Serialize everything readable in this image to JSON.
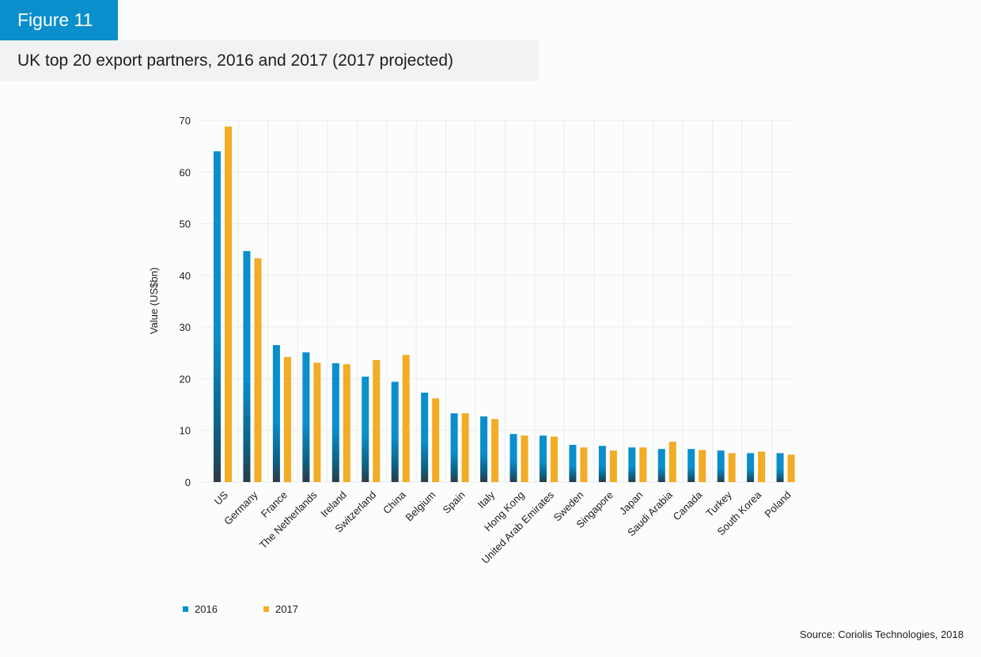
{
  "figure_label": "Figure 11",
  "title": "UK top 20 export partners, 2016 and 2017 (2017 projected)",
  "source": "Source: Coriolis Technologies, 2018",
  "colors": {
    "2016": "#0a8fcc",
    "2016_dark": "#2e3a44",
    "2017": "#f2ac25",
    "grid": "#eceef1"
  },
  "legend": [
    {
      "label": "2016",
      "key": "2016"
    },
    {
      "label": "2017",
      "key": "2017"
    }
  ],
  "chart_data": {
    "type": "bar",
    "title": "UK top 20 export partners, 2016 and 2017 (2017 projected)",
    "xlabel": "",
    "ylabel": "Value (US$bn)",
    "ylim": [
      0,
      70
    ],
    "yticks": [
      0,
      10,
      20,
      30,
      40,
      50,
      60,
      70
    ],
    "grid": true,
    "legend_position": "bottom-left",
    "categories": [
      "US",
      "Germany",
      "France",
      "The Netherlands",
      "Ireland",
      "Switzerland",
      "China",
      "Belgium",
      "Spain",
      "Italy",
      "Hong Kong",
      "United Arab Emirates",
      "Sweden",
      "Singapore",
      "Japan",
      "Saudi Arabia",
      "Canada",
      "Turkey",
      "South Korea",
      "Poland"
    ],
    "series": [
      {
        "name": "2016",
        "values": [
          64.0,
          44.7,
          26.5,
          25.1,
          23.0,
          20.4,
          19.4,
          17.3,
          13.3,
          12.7,
          9.3,
          9.0,
          7.2,
          7.0,
          6.7,
          6.4,
          6.4,
          6.1,
          5.6,
          5.6
        ]
      },
      {
        "name": "2017",
        "values": [
          68.8,
          43.3,
          24.2,
          23.1,
          22.8,
          23.6,
          24.6,
          16.2,
          13.3,
          12.2,
          9.0,
          8.8,
          6.7,
          6.1,
          6.7,
          7.8,
          6.2,
          5.6,
          5.9,
          5.3
        ]
      }
    ]
  }
}
